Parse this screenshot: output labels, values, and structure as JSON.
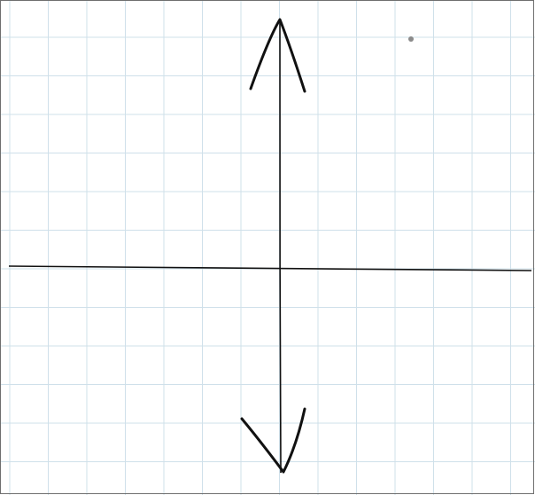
{
  "diagram": {
    "kind": "hand-drawn coordinate axes on graph paper",
    "colors": {
      "background": "#ffffff",
      "grid": "#cfe0ea",
      "frame": "#6f6f6f",
      "ink": "#111111",
      "dot": "#8a8a8a"
    },
    "y_axis": {
      "arrowheads": [
        "top",
        "bottom"
      ]
    },
    "x_axis": {
      "arrowheads": []
    }
  }
}
